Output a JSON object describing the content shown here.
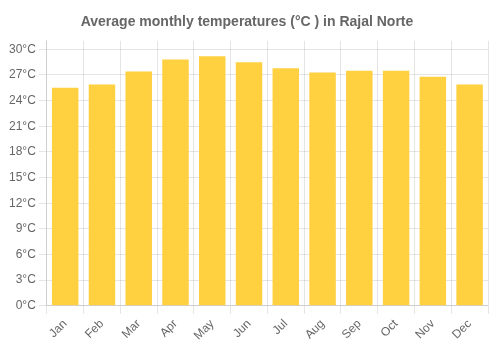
{
  "chart_data": {
    "type": "bar",
    "title": "Average monthly temperatures (°C ) in Rajal Norte",
    "categories": [
      "Jan",
      "Feb",
      "Mar",
      "Apr",
      "May",
      "Jun",
      "Jul",
      "Aug",
      "Sep",
      "Oct",
      "Nov",
      "Dec"
    ],
    "values": [
      25.5,
      25.9,
      27.4,
      28.8,
      29.2,
      28.5,
      27.8,
      27.3,
      27.5,
      27.5,
      26.8,
      25.9
    ],
    "color": "#FFD040",
    "ylim": [
      0,
      31
    ],
    "yticks": [
      {
        "value": 0,
        "label": "0°C"
      },
      {
        "value": 3,
        "label": "3°C"
      },
      {
        "value": 6,
        "label": "6°C"
      },
      {
        "value": 9,
        "label": "9°C"
      },
      {
        "value": 12,
        "label": "12°C"
      },
      {
        "value": 15,
        "label": "15°C"
      },
      {
        "value": 18,
        "label": "18°C"
      },
      {
        "value": 21,
        "label": "21°C"
      },
      {
        "value": 24,
        "label": "24°C"
      },
      {
        "value": 27,
        "label": "27°C"
      },
      {
        "value": 30,
        "label": "30°C"
      }
    ],
    "grid": true
  }
}
